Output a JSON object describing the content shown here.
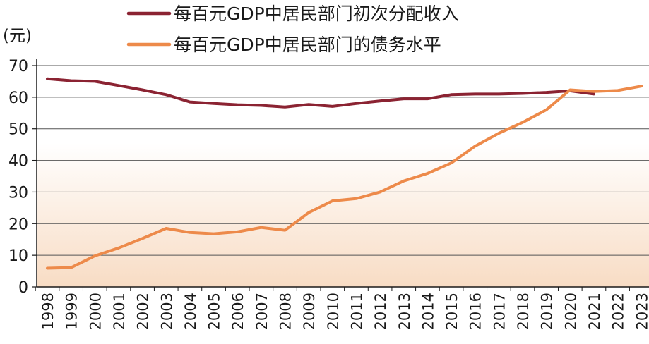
{
  "chart_data": {
    "type": "line",
    "ylabel": "(元)",
    "ylim": [
      0,
      70
    ],
    "yticks": [
      0,
      10,
      20,
      30,
      40,
      50,
      60,
      70
    ],
    "grid": true,
    "legend_position": "top",
    "categories": [
      "1998",
      "1999",
      "2000",
      "2001",
      "2002",
      "2003",
      "2004",
      "2005",
      "2006",
      "2007",
      "2008",
      "2009",
      "2010",
      "2011",
      "2012",
      "2013",
      "2014",
      "2015",
      "2016",
      "2017",
      "2018",
      "2019",
      "2020",
      "2021",
      "2022",
      "2023"
    ],
    "series": [
      {
        "name": "每百元GDP中居民部门初次分配收入",
        "color": "#8b2332",
        "values": [
          65.8,
          65.2,
          65.0,
          63.7,
          62.3,
          60.8,
          58.5,
          58.0,
          57.6,
          57.4,
          56.9,
          57.7,
          57.1,
          58.0,
          58.8,
          59.5,
          59.5,
          60.8,
          61.0,
          61.0,
          61.2,
          61.5,
          62.0,
          61.0,
          null,
          null
        ]
      },
      {
        "name": "每百元GDP中居民部门的债务水平",
        "color": "#ed8a4a",
        "values": [
          5.9,
          6.1,
          9.8,
          12.3,
          15.3,
          18.5,
          17.2,
          16.8,
          17.4,
          18.8,
          17.9,
          23.5,
          27.2,
          27.9,
          30.0,
          33.5,
          35.9,
          39.2,
          44.5,
          48.6,
          52.0,
          56.0,
          62.3,
          61.8,
          62.1,
          63.5
        ]
      }
    ]
  },
  "colors": {
    "gridline": "#555555",
    "axis": "#1a1a1a",
    "bg_top": "#ffffff",
    "bg_bottom": "#f8dcc4"
  }
}
